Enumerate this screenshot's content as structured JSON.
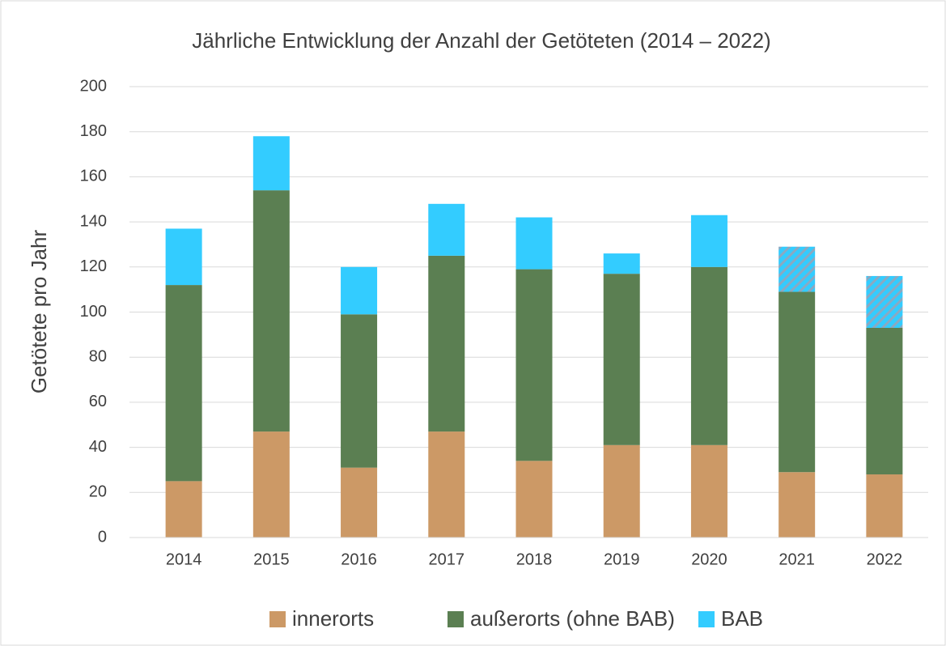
{
  "chart_data": {
    "type": "stacked_bar",
    "title": "Jährliche Entwicklung der Anzahl der Getöteten (2014 – 2022)",
    "y_label": "Getötete pro Jahr",
    "categories": [
      "2014",
      "2015",
      "2016",
      "2017",
      "2018",
      "2019",
      "2020",
      "2021",
      "2022"
    ],
    "series": [
      {
        "name": "innerorts",
        "color": "#cc9966",
        "values": [
          25,
          47,
          31,
          47,
          34,
          41,
          41,
          29,
          28
        ]
      },
      {
        "name": "außerorts (ohne BAB)",
        "color": "#5b7f52",
        "values": [
          87,
          107,
          68,
          78,
          85,
          76,
          79,
          80,
          65
        ]
      },
      {
        "name": "BAB",
        "color": "#33ccff",
        "values": [
          25,
          24,
          21,
          23,
          23,
          9,
          23,
          20,
          23
        ],
        "hatched": [
          false,
          false,
          false,
          false,
          false,
          false,
          false,
          true,
          true
        ]
      }
    ],
    "ylim": [
      0,
      200
    ],
    "yticks": [
      0,
      20,
      40,
      60,
      80,
      100,
      120,
      140,
      160,
      180,
      200
    ],
    "grid": true,
    "legend": "bottom"
  }
}
